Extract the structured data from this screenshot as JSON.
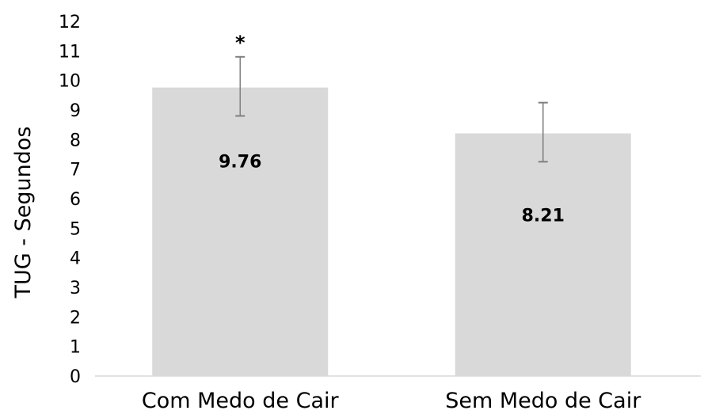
{
  "chart_data": {
    "type": "bar",
    "ylabel": "TUG - Segundos",
    "xlabel": "",
    "ylim": [
      0,
      12
    ],
    "yticks": [
      0,
      1,
      2,
      3,
      4,
      5,
      6,
      7,
      8,
      9,
      10,
      11,
      12
    ],
    "grid": false,
    "categories": [
      "Com Medo de Cair",
      "Sem Medo de Cair"
    ],
    "values": [
      9.76,
      8.21
    ],
    "data_labels": [
      "9.76",
      "8.21"
    ],
    "error_high": [
      10.8,
      9.25
    ],
    "error_low": [
      8.8,
      7.25
    ],
    "annotations": [
      "*",
      ""
    ],
    "colors": {
      "bar": "#d9d9d9",
      "error_bar": "#7f7f7f",
      "axis": "#d9d9d9",
      "text": "#000000"
    }
  }
}
